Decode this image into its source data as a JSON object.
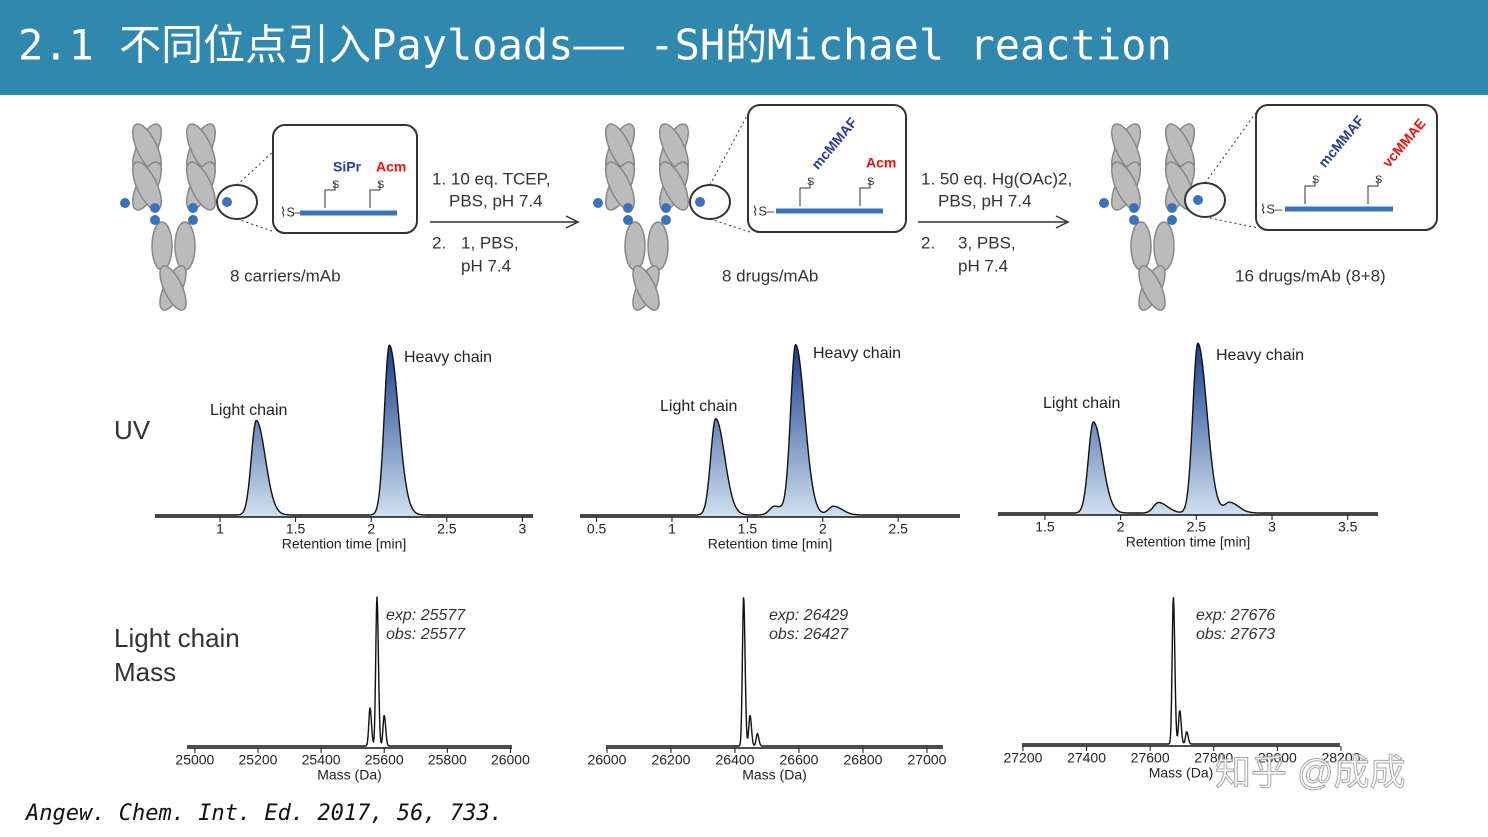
{
  "header": {
    "title": "2.1 不同位点引入Payloads—— -SH的Michael reaction"
  },
  "scheme": {
    "stages": [
      {
        "label": "8 carriers/mAb",
        "tags": [
          "SiPr",
          "Acm"
        ]
      },
      {
        "label": "8 drugs/mAb",
        "tags": [
          "mcMMAF",
          "Acm"
        ]
      },
      {
        "label": "16 drugs/mAb (8+8)",
        "tags": [
          "mcMMAF",
          "vcMMAE"
        ]
      }
    ],
    "steps": [
      {
        "lines": [
          "1. 10 eq. TCEP,",
          "PBS, pH 7.4",
          "2.",
          "1, PBS,",
          "pH 7.4"
        ]
      },
      {
        "lines": [
          "1. 50 eq. Hg(OAc)2,",
          "PBS, pH 7.4",
          "2.",
          "3, PBS,",
          "pH 7.4"
        ]
      }
    ]
  },
  "row_labels": {
    "uv": "UV",
    "mass": [
      "Light chain",
      "Mass"
    ]
  },
  "uv": [
    {
      "xlabel": "Retention time [min]",
      "xlim": [
        0.57,
        3.07
      ],
      "xticks": [
        1,
        1.5,
        2,
        2.5,
        3
      ],
      "peak_labels": [
        "Light chain",
        "Heavy chain"
      ],
      "peaks": [
        {
          "x": 1.24,
          "height": 0.54
        },
        {
          "x": 2.12,
          "height": 0.97
        }
      ]
    },
    {
      "xlabel": "Retention time [min]",
      "xlim": [
        0.39,
        2.91
      ],
      "xticks": [
        0.5,
        1,
        1.5,
        2,
        2.5
      ],
      "peak_labels": [
        "Light chain",
        "Heavy chain"
      ],
      "peaks": [
        {
          "x": 1.29,
          "height": 0.55
        },
        {
          "x": 1.68,
          "height": 0.05
        },
        {
          "x": 1.82,
          "height": 0.97
        },
        {
          "x": 2.07,
          "height": 0.05
        }
      ]
    },
    {
      "xlabel": "Retention time [min]",
      "xlim": [
        1.19,
        3.7
      ],
      "xticks": [
        1.5,
        2,
        2.5,
        3,
        3.5
      ],
      "peak_labels": [
        "Light chain",
        "Heavy chain"
      ],
      "peaks": [
        {
          "x": 1.82,
          "height": 0.52
        },
        {
          "x": 2.25,
          "height": 0.06
        },
        {
          "x": 2.51,
          "height": 0.97
        },
        {
          "x": 2.72,
          "height": 0.06
        }
      ]
    }
  ],
  "mass": [
    {
      "xlabel": "Mass (Da)",
      "xlim": [
        24975,
        26005
      ],
      "xticks": [
        25000,
        25200,
        25400,
        25600,
        25800,
        26000
      ],
      "exp": "exp: 25577",
      "obs": "obs: 25577",
      "peaks": [
        {
          "x": 25555,
          "height": 0.25
        },
        {
          "x": 25577,
          "height": 0.97
        },
        {
          "x": 25600,
          "height": 0.2
        }
      ]
    },
    {
      "xlabel": "Mass (Da)",
      "xlim": [
        25997,
        27050
      ],
      "xticks": [
        26000,
        26200,
        26400,
        26600,
        26800,
        27000
      ],
      "exp": "exp: 26429",
      "obs": "obs: 26427",
      "peaks": [
        {
          "x": 26427,
          "height": 0.97
        },
        {
          "x": 26447,
          "height": 0.2
        },
        {
          "x": 26470,
          "height": 0.08
        }
      ]
    },
    {
      "xlabel": "Mass (Da)",
      "xlim": [
        27197,
        28197
      ],
      "xticks": [
        27200,
        27400,
        27600,
        27800,
        28000,
        28200
      ],
      "exp": "exp: 27676",
      "obs": "obs: 27673",
      "peaks": [
        {
          "x": 27673,
          "height": 0.97
        },
        {
          "x": 27693,
          "height": 0.22
        },
        {
          "x": 27715,
          "height": 0.08
        }
      ]
    }
  ],
  "citation": "Angew. Chem. Int. Ed. 2017, 56, 733.",
  "watermark": "知乎 @成成"
}
